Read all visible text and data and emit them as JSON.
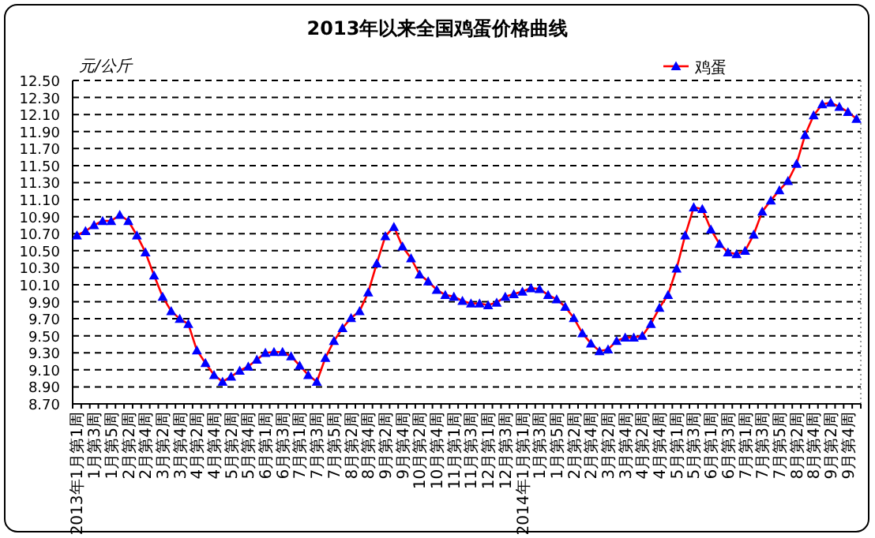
{
  "chart_data": {
    "type": "line",
    "title": "2013年以来全国鸡蛋价格曲线",
    "ylabel": "元/公斤",
    "categories": [
      "2013年1月第1周",
      null,
      "1月第3周",
      null,
      "1月第5周",
      null,
      "2月第2周",
      null,
      "2月第4周",
      null,
      "3月第2周",
      null,
      "3月第4周",
      null,
      "4月第2周",
      null,
      "4月第4周",
      null,
      "5月第2周",
      null,
      "5月第4周",
      null,
      "6月第1周",
      null,
      "6月第3周",
      null,
      "7月第1周",
      null,
      "7月第3周",
      null,
      "7月第5周",
      null,
      "8月第2周",
      null,
      "8月第4周",
      null,
      "9月第2周",
      null,
      "9月第4周",
      null,
      "10月第2周",
      null,
      "10月第4周",
      null,
      "11月第1周",
      null,
      "11月第3周",
      null,
      "12月第1周",
      null,
      "12月第3周",
      null,
      "2014年1月第1周",
      null,
      "1月第3周",
      null,
      "1月第5周",
      null,
      "2月第2周",
      null,
      "2月第4周",
      null,
      "3月第2周",
      null,
      "3月第4周",
      null,
      "4月第2周",
      null,
      "4月第4周",
      null,
      "5月第1周",
      null,
      "5月第3周",
      null,
      "6月第1周",
      null,
      "6月第3周",
      null,
      "7月第1周",
      null,
      "7月第3周",
      null,
      "7月第5周",
      null,
      "8月第2周",
      null,
      "8月第4周",
      null,
      "9月第2周",
      null,
      "9月第4周",
      null
    ],
    "series": [
      {
        "name": "鸡蛋",
        "color": "#0000ff",
        "values": [
          10.68,
          10.73,
          10.8,
          10.85,
          10.85,
          10.92,
          10.85,
          10.68,
          10.48,
          10.21,
          9.96,
          9.79,
          9.7,
          9.64,
          9.33,
          9.18,
          9.04,
          8.96,
          9.02,
          9.09,
          9.14,
          9.22,
          9.3,
          9.31,
          9.31,
          9.26,
          9.15,
          9.04,
          8.96,
          9.24,
          9.44,
          9.59,
          9.71,
          9.79,
          10.01,
          10.35,
          10.67,
          10.78,
          10.55,
          10.41,
          10.22,
          10.14,
          10.04,
          9.98,
          9.96,
          9.91,
          9.88,
          9.88,
          9.86,
          9.89,
          9.96,
          9.99,
          10.02,
          10.06,
          10.05,
          9.98,
          9.93,
          9.84,
          9.71,
          9.53,
          9.41,
          9.32,
          9.34,
          9.44,
          9.48,
          9.48,
          9.5,
          9.64,
          9.83,
          9.98,
          10.29,
          10.68,
          11.01,
          10.99,
          10.75,
          10.58,
          10.48,
          10.46,
          10.5,
          10.69,
          10.96,
          11.09,
          11.21,
          11.32,
          11.52,
          11.86,
          12.09,
          12.22,
          12.24,
          12.19,
          12.13,
          12.05
        ]
      }
    ],
    "ylim": [
      8.7,
      12.5
    ],
    "yticks": [
      {
        "value": 8.7,
        "label": "8.70"
      },
      {
        "value": 8.9,
        "label": "8.90"
      },
      {
        "value": 9.1,
        "label": "9.10"
      },
      {
        "value": 9.3,
        "label": "9.30"
      },
      {
        "value": 9.5,
        "label": "9.50"
      },
      {
        "value": 9.7,
        "label": "9.70"
      },
      {
        "value": 9.9,
        "label": "9.90"
      },
      {
        "value": 10.1,
        "label": "10.10"
      },
      {
        "value": 10.3,
        "label": "10.30"
      },
      {
        "value": 10.5,
        "label": "10.50"
      },
      {
        "value": 10.7,
        "label": "10.70"
      },
      {
        "value": 10.9,
        "label": "10.90"
      },
      {
        "value": 11.1,
        "label": "11.10"
      },
      {
        "value": 11.3,
        "label": "11.30"
      },
      {
        "value": 11.5,
        "label": "11.50"
      },
      {
        "value": 11.7,
        "label": "11.70"
      },
      {
        "value": 11.9,
        "label": "11.90"
      },
      {
        "value": 12.1,
        "label": "12.10"
      },
      {
        "value": 12.3,
        "label": "12.30"
      },
      {
        "value": 12.5,
        "label": "12.50"
      }
    ],
    "grid": "y",
    "legend": "top right",
    "marker": "triangle",
    "line_style": "solid"
  }
}
